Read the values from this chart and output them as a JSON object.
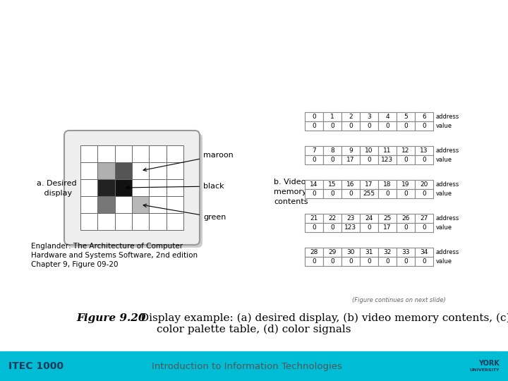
{
  "bg_color": "#ffffff",
  "footer_left": "ITEC 1000",
  "footer_center": "Introduction to Information Technologies",
  "footer_bar_color": "#00bcd4",
  "credit_line1": "Englander: The Architecture of Computer",
  "credit_line2": "Hardware and Systems Software, 2nd edition",
  "credit_line3": "Chapter 9, Figure 09-20",
  "figure_continues": "(Figure continues on next slide)",
  "section_a_label": "a. Desired\n   display",
  "section_b_label": "b. Video\nmemory\ncontents",
  "grid_colors": [
    [
      "w",
      "w",
      "w",
      "w",
      "w",
      "w"
    ],
    [
      "w",
      "#b0b0b0",
      "#555555",
      "w",
      "w",
      "w"
    ],
    [
      "w",
      "#222222",
      "#111111",
      "w",
      "w",
      "w"
    ],
    [
      "w",
      "#777777",
      "w",
      "#b8b8b8",
      "w",
      "w"
    ],
    [
      "w",
      "w",
      "w",
      "w",
      "w",
      "w"
    ]
  ],
  "table_rows": [
    {
      "address": [
        0,
        1,
        2,
        3,
        4,
        5,
        6
      ],
      "value": [
        0,
        0,
        0,
        0,
        0,
        0,
        0
      ]
    },
    {
      "address": [
        7,
        8,
        9,
        10,
        11,
        12,
        13
      ],
      "value": [
        0,
        0,
        17,
        0,
        123,
        0,
        0
      ]
    },
    {
      "address": [
        14,
        15,
        16,
        17,
        18,
        19,
        20
      ],
      "value": [
        0,
        0,
        0,
        255,
        0,
        0,
        0
      ]
    },
    {
      "address": [
        21,
        22,
        23,
        24,
        25,
        26,
        27
      ],
      "value": [
        0,
        0,
        123,
        0,
        17,
        0,
        0
      ]
    },
    {
      "address": [
        28,
        29,
        30,
        31,
        32,
        33,
        34
      ],
      "value": [
        0,
        0,
        0,
        0,
        0,
        0,
        0
      ]
    }
  ]
}
